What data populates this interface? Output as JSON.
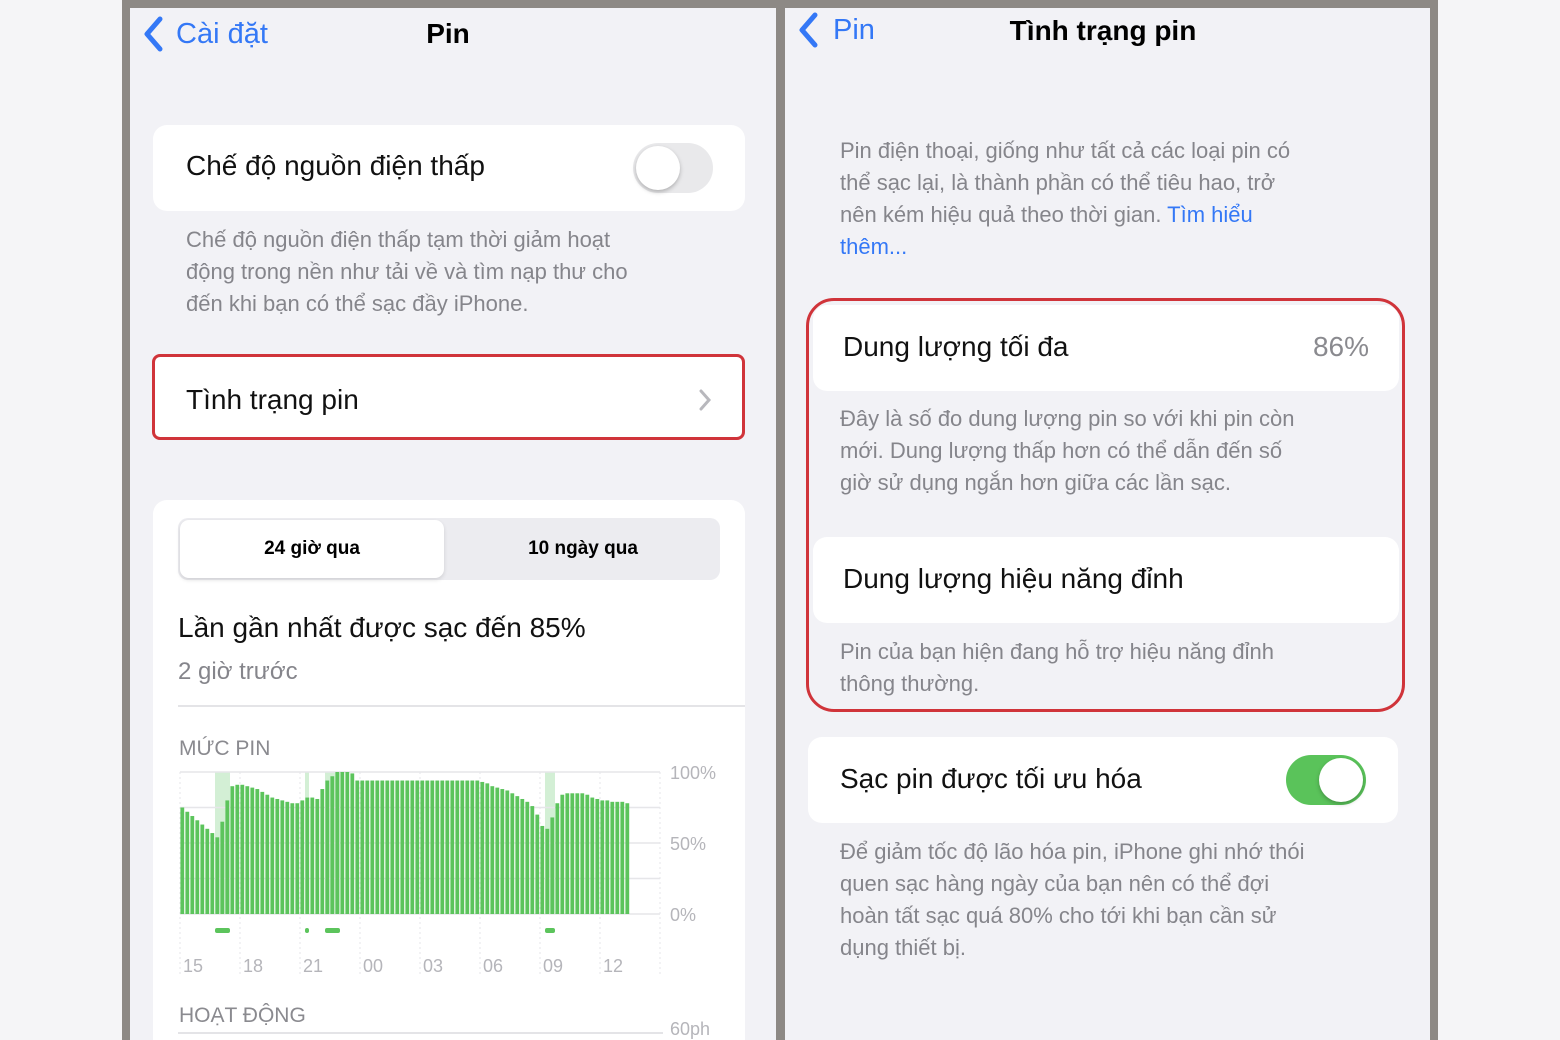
{
  "left": {
    "nav": {
      "back_label": "Cài đặt",
      "title": "Pin"
    },
    "low_power": {
      "label": "Chế độ nguồn điện thấp",
      "enabled": false,
      "description": [
        "Chế độ nguồn điện thấp tạm thời giảm hoạt",
        "động trong nền như tải về và tìm nạp thư cho",
        "đến khi bạn có thể sạc đầy iPhone."
      ]
    },
    "battery_health_row": {
      "label": "Tình trạng pin"
    },
    "segmented": {
      "options": [
        "24 giờ qua",
        "10 ngày qua"
      ],
      "selected": 0
    },
    "last_charged": {
      "title": "Lần gần nhất được sạc đến 85%",
      "subtitle": "2 giờ trước"
    },
    "battery_level_label": "MỨC PIN",
    "activity_label": "HOẠT ĐỘNG",
    "activity_axis_label": "60ph"
  },
  "chart_data": {
    "type": "bar",
    "title": "MỨC PIN",
    "x_tick_labels": [
      "15",
      "18",
      "21",
      "00",
      "03",
      "06",
      "09",
      "12"
    ],
    "y_tick_labels": [
      "100%",
      "50%",
      "0%"
    ],
    "ylim": [
      0,
      100
    ],
    "interval": "15 min",
    "start": "15:00",
    "values": [
      75,
      72,
      69,
      66,
      63,
      60,
      57,
      54,
      65,
      80,
      90,
      91,
      91,
      90,
      89,
      88,
      86,
      84,
      82,
      81,
      80,
      79,
      78,
      78,
      80,
      82,
      82,
      81,
      88,
      94,
      97,
      100,
      100,
      100,
      99,
      94,
      94,
      94,
      94,
      94,
      94,
      94,
      94,
      94,
      94,
      94,
      94,
      94,
      94,
      94,
      94,
      94,
      94,
      94,
      94,
      94,
      94,
      94,
      94,
      94,
      93,
      92,
      90,
      89,
      88,
      87,
      85,
      83,
      81,
      79,
      76,
      70,
      62,
      60,
      68,
      78,
      84,
      85,
      85,
      85,
      85,
      84,
      82,
      81,
      80,
      80,
      79,
      79,
      79,
      78
    ],
    "charging_periods": [
      [
        "16:45",
        "17:30"
      ],
      [
        "21:15",
        "21:20"
      ],
      [
        "22:15",
        "23:00"
      ],
      [
        "09:15",
        "09:45"
      ]
    ],
    "bar_color": "#5cc45c",
    "charging_color": "#d3efd5",
    "grid": true
  },
  "right": {
    "nav": {
      "back_label": "Pin",
      "title": "Tình trạng pin"
    },
    "intro": [
      "Pin điện thoại, giống như tất cả các loại pin có",
      "thể sạc lại, là thành phần có thể tiêu hao, trở",
      "nên kém hiệu quả theo thời gian. "
    ],
    "intro_link": [
      "Tìm hiểu",
      "thêm..."
    ],
    "max_capacity": {
      "label": "Dung lượng tối đa",
      "value": "86%",
      "description": [
        "Đây là số đo dung lượng pin so với khi pin còn",
        "mới. Dung lượng thấp hơn có thể dẫn đến số",
        "giờ sử dụng ngắn hơn giữa các lần sạc."
      ]
    },
    "peak_performance": {
      "label": "Dung lượng hiệu năng đỉnh",
      "description": [
        "Pin của bạn hiện đang hỗ trợ hiệu năng đỉnh",
        "thông thường."
      ]
    },
    "optimized_charging": {
      "label": "Sạc pin được tối ưu hóa",
      "enabled": true,
      "description": [
        "Để giảm tốc độ lão hóa pin, iPhone ghi nhớ thói",
        "quen sạc hàng ngày của bạn nên có thể đợi",
        "hoàn tất sạc quá 80% cho tới khi bạn cần sử",
        "dụng thiết bị."
      ]
    }
  },
  "colors": {
    "accent": "#3478f6",
    "highlight": "#d0343a",
    "toggle_on": "#5ac35a",
    "toggle_off": "#e9e9eb"
  }
}
